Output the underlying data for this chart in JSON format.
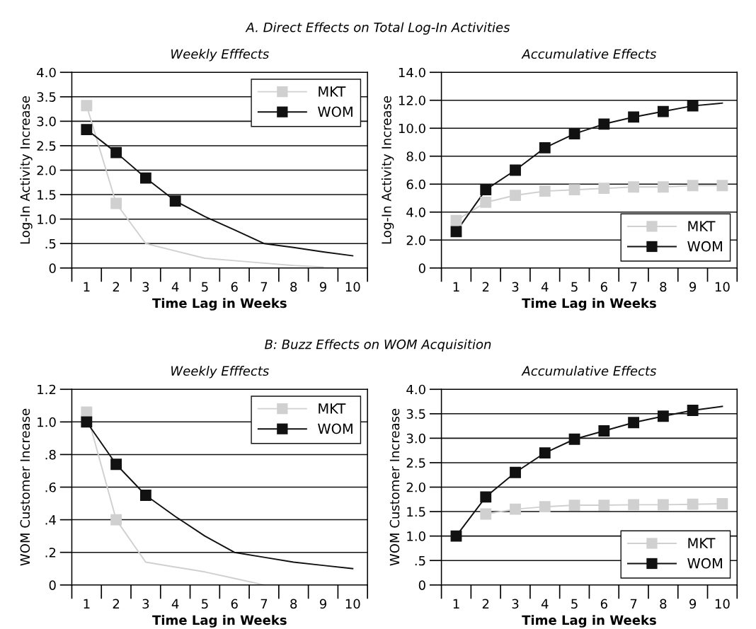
{
  "chart_data": [
    {
      "type": "line",
      "title": "A. Direct Effects on Total Log-In Activities",
      "subtitle": "Weekly Efffects",
      "xlabel": "Time Lag in Weeks",
      "ylabel": "Log-In Activity Increase",
      "categories": [
        "1",
        "2",
        "3",
        "4",
        "5",
        "6",
        "7",
        "8",
        "9",
        "10"
      ],
      "ylim": [
        0,
        4
      ],
      "yticks": [
        {
          "value": 0,
          "label": "0"
        },
        {
          "value": 0.5,
          "label": ".5"
        },
        {
          "value": 1,
          "label": "1.0"
        },
        {
          "value": 1.5,
          "label": "1.5"
        },
        {
          "value": 2,
          "label": "2.0"
        },
        {
          "value": 2.5,
          "label": "2.5"
        },
        {
          "value": 3,
          "label": "3.0"
        },
        {
          "value": 3.5,
          "label": "3.5"
        },
        {
          "value": 4,
          "label": "4.0"
        }
      ],
      "grid": "y",
      "legend": "top right",
      "marker": "square",
      "series": [
        {
          "name": "MKT",
          "color": "#d0d0d0",
          "marker": "none",
          "values": [
            3.32,
            1.32,
            0.5,
            0.35,
            0.2,
            0.15,
            0.1,
            0.05,
            0.02,
            null
          ]
        },
        {
          "type": "scatter",
          "color": "#d0d0d0",
          "values": [
            3.32,
            1.32,
            null,
            null,
            null,
            null,
            null,
            null,
            null,
            null
          ]
        },
        {
          "name": "WOM",
          "color": "#111111",
          "marker": "none",
          "values": [
            2.83,
            2.36,
            1.84,
            1.37,
            1.05,
            0.78,
            0.5,
            0.42,
            0.33,
            0.25
          ]
        },
        {
          "type": "scatter",
          "color": "#111111",
          "values": [
            2.83,
            2.36,
            1.84,
            1.37,
            null,
            null,
            null,
            null,
            null,
            null
          ]
        }
      ]
    },
    {
      "type": "line",
      "subtitle": "Accumulative Effects",
      "xlabel": "Time Lag in Weeks",
      "ylabel": "Log-In Activity Increase",
      "categories": [
        "1",
        "2",
        "3",
        "4",
        "5",
        "6",
        "7",
        "8",
        "9",
        "10"
      ],
      "ylim": [
        0,
        14
      ],
      "yticks": [
        {
          "value": 0,
          "label": "0"
        },
        {
          "value": 2,
          "label": "2.0"
        },
        {
          "value": 4,
          "label": "4.0"
        },
        {
          "value": 6,
          "label": "6.0"
        },
        {
          "value": 8,
          "label": "8.0"
        },
        {
          "value": 10,
          "label": "10.0"
        },
        {
          "value": 12,
          "label": "12.0"
        },
        {
          "value": 14,
          "label": "14.0"
        }
      ],
      "grid": "y",
      "legend": "bottom right",
      "marker": "square",
      "series": [
        {
          "name": "MKT",
          "color": "#d0d0d0",
          "marker": "none",
          "values": [
            3.4,
            4.7,
            5.2,
            5.5,
            5.6,
            5.7,
            5.8,
            5.8,
            5.9,
            5.9
          ]
        },
        {
          "type": "scatter",
          "color": "#d0d0d0",
          "values": [
            3.4,
            4.7,
            5.2,
            5.5,
            5.6,
            5.7,
            5.8,
            5.8,
            5.9,
            5.9
          ]
        },
        {
          "name": "WOM",
          "color": "#111111",
          "marker": "none",
          "values": [
            2.6,
            5.6,
            7.0,
            8.6,
            9.6,
            10.3,
            10.8,
            11.2,
            11.6,
            11.8
          ]
        },
        {
          "type": "scatter",
          "color": "#111111",
          "values": [
            2.6,
            5.6,
            7.0,
            8.6,
            9.6,
            10.3,
            10.8,
            11.2,
            11.6,
            null
          ]
        }
      ]
    },
    {
      "type": "line",
      "title": "B: Buzz Effects on WOM Acquisition",
      "subtitle": "Weekly Efffects",
      "xlabel": "Time Lag in Weeks",
      "ylabel": "WOM Customer Increase",
      "categories": [
        "1",
        "2",
        "3",
        "4",
        "5",
        "6",
        "7",
        "8",
        "9",
        "10"
      ],
      "ylim": [
        0,
        1.2
      ],
      "yticks": [
        {
          "value": 0,
          "label": "0"
        },
        {
          "value": 0.2,
          "label": ".2"
        },
        {
          "value": 0.4,
          "label": ".4"
        },
        {
          "value": 0.6,
          "label": ".6"
        },
        {
          "value": 0.8,
          "label": ".8"
        },
        {
          "value": 1.0,
          "label": "1.0"
        },
        {
          "value": 1.2,
          "label": "1.2"
        }
      ],
      "grid": "y",
      "legend": "top right",
      "marker": "square",
      "series": [
        {
          "name": "MKT",
          "color": "#d0d0d0",
          "marker": "none",
          "values": [
            1.06,
            0.4,
            0.14,
            0.11,
            0.08,
            0.04,
            0.0,
            null,
            null,
            null
          ]
        },
        {
          "type": "scatter",
          "color": "#d0d0d0",
          "values": [
            1.06,
            0.4,
            null,
            null,
            null,
            null,
            null,
            null,
            null,
            null
          ]
        },
        {
          "name": "WOM",
          "color": "#111111",
          "marker": "none",
          "values": [
            1.0,
            0.74,
            0.55,
            0.42,
            0.3,
            0.2,
            0.17,
            0.14,
            0.12,
            0.1
          ]
        },
        {
          "type": "scatter",
          "color": "#111111",
          "values": [
            1.0,
            0.74,
            0.55,
            null,
            null,
            null,
            null,
            null,
            null,
            null
          ]
        }
      ]
    },
    {
      "type": "line",
      "subtitle": "Accumulative Effects",
      "xlabel": "Time Lag in Weeks",
      "ylabel": "WOM Customer Increase",
      "categories": [
        "1",
        "2",
        "3",
        "4",
        "5",
        "6",
        "7",
        "8",
        "9",
        "10"
      ],
      "ylim": [
        0,
        4
      ],
      "yticks": [
        {
          "value": 0,
          "label": "0"
        },
        {
          "value": 0.5,
          "label": ".5"
        },
        {
          "value": 1,
          "label": "1.0"
        },
        {
          "value": 1.5,
          "label": "1.5"
        },
        {
          "value": 2,
          "label": "2.0"
        },
        {
          "value": 2.5,
          "label": "2.5"
        },
        {
          "value": 3,
          "label": "3.0"
        },
        {
          "value": 3.5,
          "label": "3.5"
        },
        {
          "value": 4,
          "label": "4.0"
        }
      ],
      "grid": "y",
      "legend": "bottom right",
      "marker": "square",
      "series": [
        {
          "name": "MKT",
          "color": "#d0d0d0",
          "marker": "none",
          "values": [
            null,
            1.45,
            1.55,
            1.6,
            1.63,
            1.63,
            1.64,
            1.64,
            1.65,
            1.66
          ]
        },
        {
          "type": "scatter",
          "color": "#d0d0d0",
          "values": [
            null,
            1.45,
            1.55,
            1.6,
            1.63,
            1.63,
            1.64,
            1.64,
            1.65,
            1.66
          ]
        },
        {
          "name": "WOM",
          "color": "#111111",
          "marker": "none",
          "values": [
            1.0,
            1.8,
            2.3,
            2.7,
            2.98,
            3.15,
            3.32,
            3.45,
            3.57,
            3.65
          ]
        },
        {
          "type": "scatter",
          "color": "#111111",
          "values": [
            1.0,
            1.8,
            2.3,
            2.7,
            2.98,
            3.15,
            3.32,
            3.45,
            3.57,
            null
          ]
        }
      ]
    }
  ]
}
